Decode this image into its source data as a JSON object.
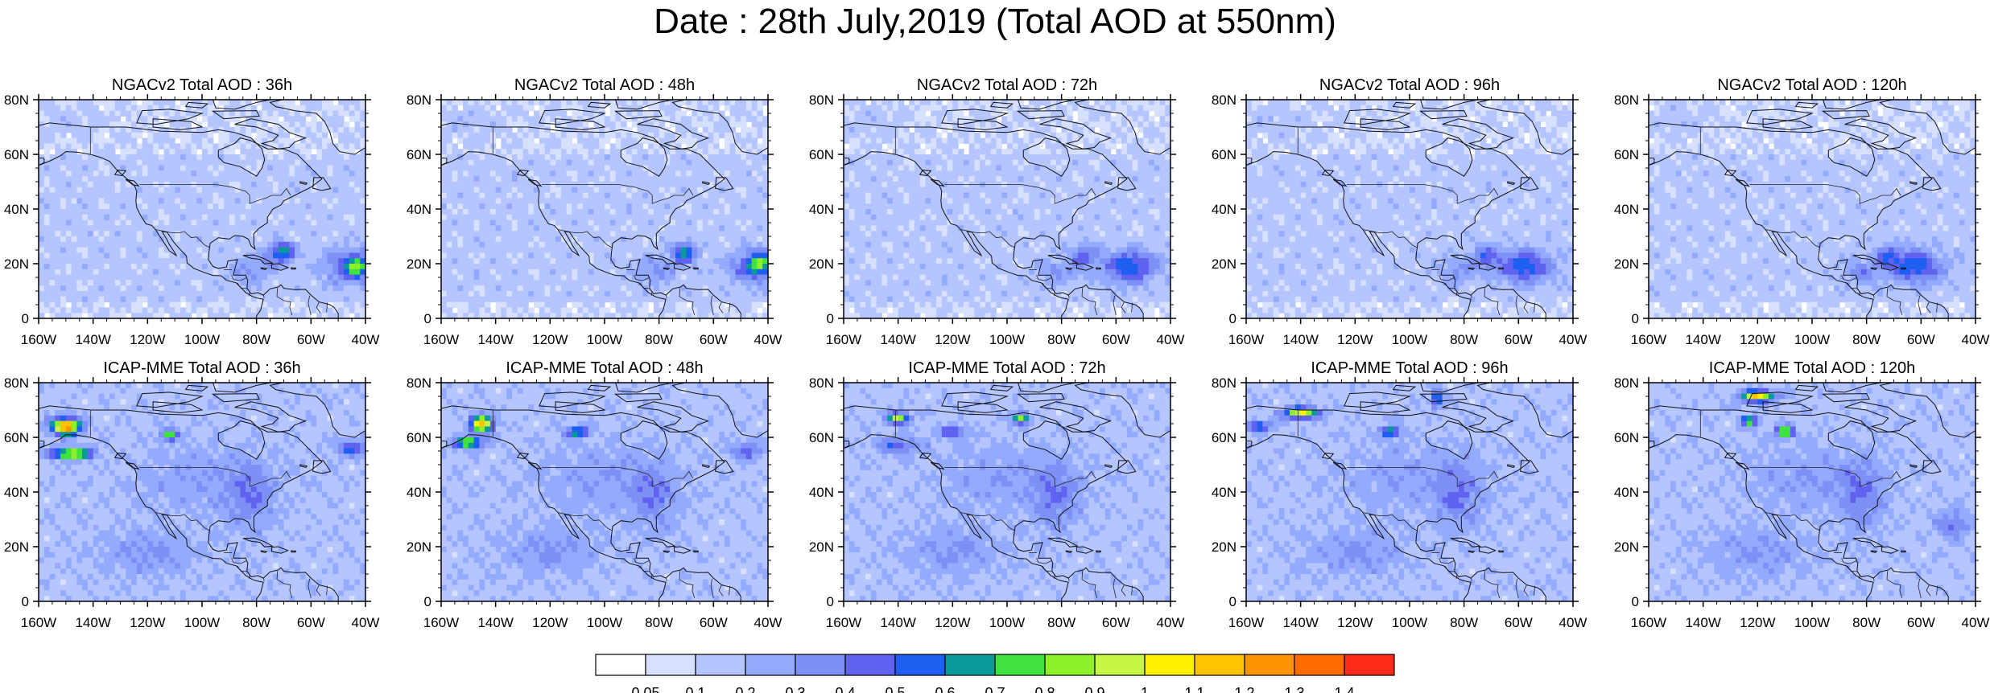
{
  "title": "Date : 28th July,2019 (Total AOD at 550nm)",
  "lon_labels": [
    "160W",
    "140W",
    "120W",
    "100W",
    "80W",
    "60W",
    "40W"
  ],
  "lat_labels": [
    "0",
    "20N",
    "40N",
    "60N",
    "80N"
  ],
  "panels": [
    {
      "title": "NGACv2 Total AOD : 36h",
      "model": "NGACv2",
      "lead": 36
    },
    {
      "title": "NGACv2 Total AOD : 48h",
      "model": "NGACv2",
      "lead": 48
    },
    {
      "title": "NGACv2 Total AOD : 72h",
      "model": "NGACv2",
      "lead": 72
    },
    {
      "title": "NGACv2 Total AOD : 96h",
      "model": "NGACv2",
      "lead": 96
    },
    {
      "title": "NGACv2 Total AOD : 120h",
      "model": "NGACv2",
      "lead": 120
    },
    {
      "title": "ICAP-MME Total AOD : 36h",
      "model": "ICAP-MME",
      "lead": 36
    },
    {
      "title": "ICAP-MME Total AOD : 48h",
      "model": "ICAP-MME",
      "lead": 48
    },
    {
      "title": "ICAP-MME Total AOD : 72h",
      "model": "ICAP-MME",
      "lead": 72
    },
    {
      "title": "ICAP-MME Total AOD : 96h",
      "model": "ICAP-MME",
      "lead": 96
    },
    {
      "title": "ICAP-MME Total AOD : 120h",
      "model": "ICAP-MME",
      "lead": 120
    }
  ],
  "colorbar": {
    "labels": [
      "0.05",
      "0.1",
      "0.2",
      "0.3",
      "0.4",
      "0.5",
      "0.6",
      "0.7",
      "0.8",
      "0.9",
      "1",
      "1.1",
      "1.2",
      "1.3",
      "1.4"
    ],
    "colors": [
      "#ffffff",
      "#d7e0ff",
      "#b5c5ff",
      "#93aaff",
      "#7e90f5",
      "#5f63ef",
      "#1e5ef0",
      "#0a9a9a",
      "#3fe23f",
      "#8ef028",
      "#c6f545",
      "#fff200",
      "#ffc400",
      "#ff9400",
      "#ff6a00",
      "#ff2a1a"
    ]
  }
}
